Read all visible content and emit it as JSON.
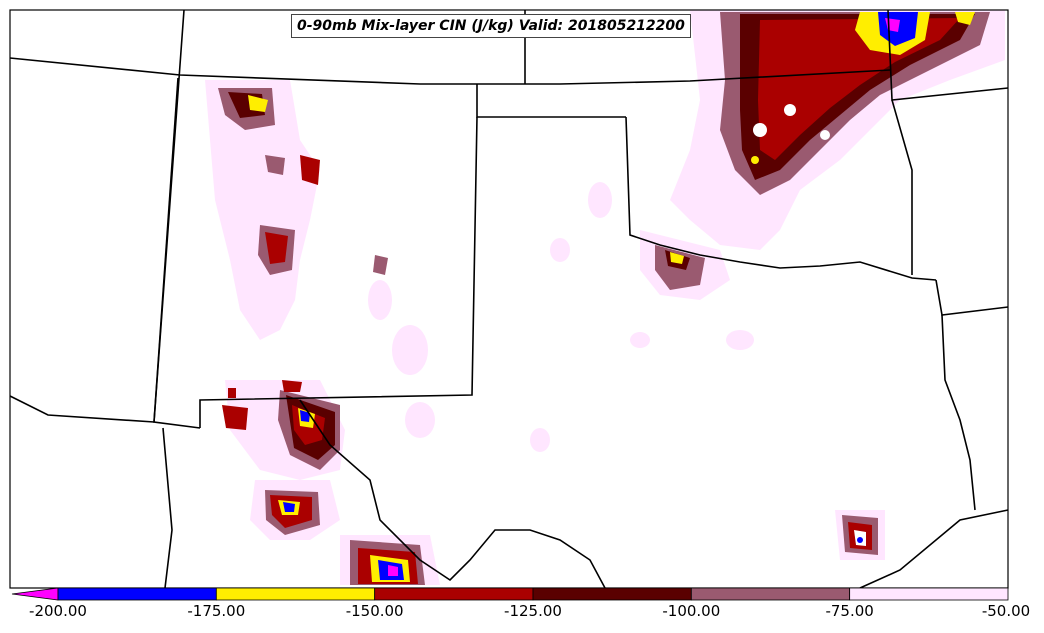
{
  "title": "0-90mb Mix-layer CIN (J/kg) Valid: 201805212200",
  "colorbar": {
    "ticks": [
      "-200.00",
      "-175.00",
      "-150.00",
      "-125.00",
      "-100.00",
      "-75.00",
      "-50.00"
    ],
    "bins": [
      {
        "range": [
          -225,
          -200
        ],
        "color": "#ff00ff"
      },
      {
        "range": [
          -200,
          -175
        ],
        "color": "#0000ff"
      },
      {
        "range": [
          -175,
          -150
        ],
        "color": "#ffee00"
      },
      {
        "range": [
          -150,
          -125
        ],
        "color": "#aa0000"
      },
      {
        "range": [
          -125,
          -100
        ],
        "color": "#5a0000"
      },
      {
        "range": [
          -100,
          -75
        ],
        "color": "#9a5a70"
      },
      {
        "range": [
          -75,
          -50
        ],
        "color": "#ffe6ff"
      }
    ]
  },
  "colors": {
    "background": "#ffffff",
    "border": "#000000",
    "state_lines": "#000000"
  }
}
